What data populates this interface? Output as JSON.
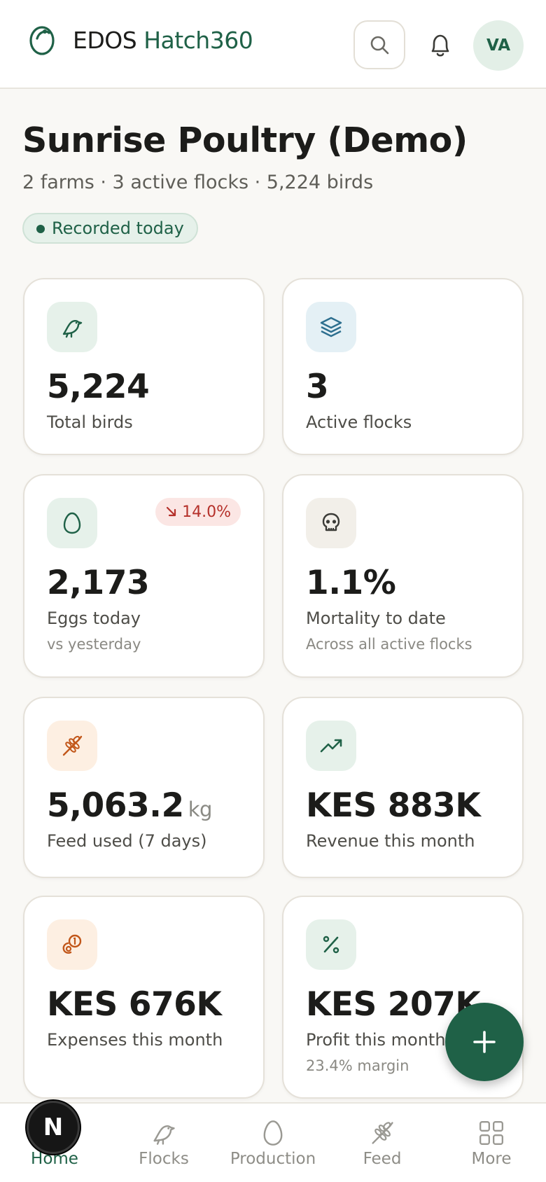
{
  "header": {
    "brand_primary": "EDOS",
    "brand_secondary": "Hatch360",
    "avatar_initials": "VA"
  },
  "page": {
    "title": "Sunrise Poultry (Demo)",
    "subtitle": "2 farms · 3 active flocks · 5,224 birds",
    "status": "Recorded today"
  },
  "cards": {
    "total_birds": {
      "value": "5,224",
      "label": "Total birds",
      "icon": "bird-icon"
    },
    "active_flocks": {
      "value": "3",
      "label": "Active flocks",
      "icon": "layers-icon"
    },
    "eggs_today": {
      "value": "2,173",
      "label": "Eggs today",
      "hint": "vs yesterday",
      "trend": "14.0%",
      "trend_direction": "down",
      "icon": "egg-icon"
    },
    "mortality": {
      "value": "1.1%",
      "label": "Mortality to date",
      "hint": "Across all active flocks",
      "icon": "skull-icon"
    },
    "feed_used": {
      "value": "5,063.2",
      "unit": "kg",
      "label": "Feed used (7 days)",
      "icon": "wheat-icon"
    },
    "revenue": {
      "value": "KES 883K",
      "label": "Revenue this month",
      "icon": "trending-up-icon"
    },
    "expenses": {
      "value": "KES 676K",
      "label": "Expenses this month",
      "icon": "coins-icon"
    },
    "profit": {
      "value": "KES 207K",
      "label": "Profit this month",
      "hint": "23.4% margin",
      "icon": "percent-icon"
    }
  },
  "nav": {
    "items": [
      {
        "label": "Home",
        "icon": "home-icon",
        "active": true
      },
      {
        "label": "Flocks",
        "icon": "bird-icon"
      },
      {
        "label": "Production",
        "icon": "egg-icon"
      },
      {
        "label": "Feed",
        "icon": "wheat-icon"
      },
      {
        "label": "More",
        "icon": "grid-icon"
      }
    ]
  },
  "dev_badge": "N",
  "colors": {
    "brand": "#1f6147",
    "background": "#f9f8f5",
    "danger": "#b5302a",
    "orange": "#c2571a",
    "blue": "#2d6f8f"
  }
}
